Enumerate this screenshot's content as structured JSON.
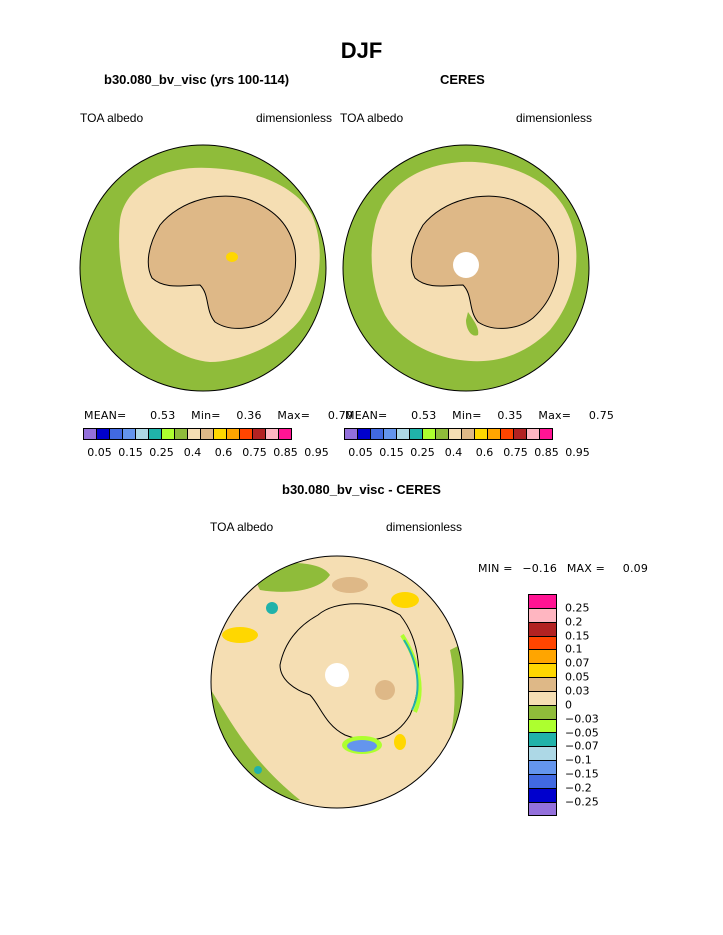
{
  "figure": {
    "title": "DJF",
    "panel_left": {
      "title": "b30.080_bv_visc (yrs 100-114)",
      "left_label": "TOA albedo",
      "right_label": "dimensionless",
      "stats": {
        "mean_label": "MEAN=",
        "mean": "0.53",
        "min_label": "Min=",
        "min": "0.36",
        "max_label": "Max=",
        "max": "0.70"
      }
    },
    "panel_right": {
      "title": "CERES",
      "left_label": "TOA albedo",
      "right_label": "dimensionless",
      "stats": {
        "mean_label": "MEAN=",
        "mean": "0.53",
        "min_label": "Min=",
        "min": "0.35",
        "max_label": "Max=",
        "max": "0.75"
      }
    },
    "panel_diff": {
      "title": "b30.080_bv_visc - CERES",
      "left_label": "TOA albedo",
      "right_label": "dimensionless",
      "minmax": {
        "min_label": "MIN =",
        "min": "−0.16",
        "max_label": "MAX =",
        "max": "0.09"
      }
    }
  },
  "colorbar_albedo": {
    "colors": [
      "#9370db",
      "#0000cd",
      "#4169e1",
      "#6495ed",
      "#add8e6",
      "#20b2aa",
      "#adff2f",
      "#8fbc3a",
      "#f5deb3",
      "#deb887",
      "#ffd700",
      "#ffa500",
      "#ff4500",
      "#b22222",
      "#ffb6c1",
      "#ff1493"
    ],
    "tick_labels": [
      "0.05",
      "0.15",
      "0.25",
      "0.4",
      "0.6",
      "0.75",
      "0.85",
      "0.95"
    ]
  },
  "colorbar_diff": {
    "colors": [
      "#ff1493",
      "#ffb6c1",
      "#b22222",
      "#ff4500",
      "#ffa500",
      "#ffd700",
      "#deb887",
      "#f5deb3",
      "#8fbc3a",
      "#adff2f",
      "#20b2aa",
      "#add8e6",
      "#6495ed",
      "#4169e1",
      "#0000cd",
      "#9370db"
    ],
    "labels": [
      "0.25",
      "0.2",
      "0.15",
      "0.1",
      "0.07",
      "0.05",
      "0.03",
      "0",
      "−0.03",
      "−0.05",
      "−0.07",
      "−0.1",
      "−0.15",
      "−0.2",
      "−0.25"
    ]
  },
  "map_colors": {
    "ocean": "#8fbc3a",
    "ice": "#f5deb3",
    "land": "#deb887",
    "high": "#ffd700",
    "pole_hole": "#ffffff",
    "coast": "#000000",
    "teal": "#20b2aa",
    "blue": "#4169e1",
    "light_green": "#adff2f"
  }
}
